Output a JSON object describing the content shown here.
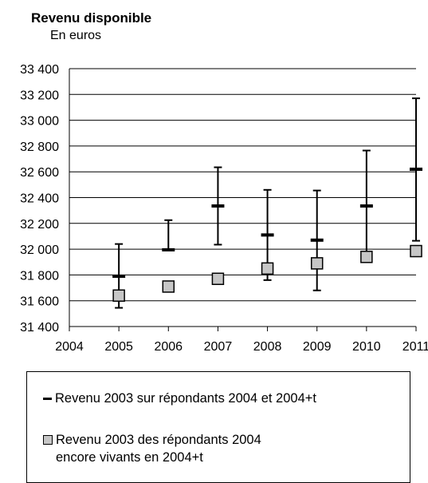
{
  "chart_data": {
    "type": "line",
    "title": "Revenu disponible",
    "subtitle": "En euros",
    "x_ticks": [
      "2004",
      "2005",
      "2006",
      "2007",
      "2008",
      "2009",
      "2010",
      "2011"
    ],
    "y_ticks": [
      "31 400",
      "31 600",
      "31 800",
      "32 000",
      "32 200",
      "32 400",
      "32 600",
      "32 800",
      "33 000",
      "33 200",
      "33 400"
    ],
    "ylim": [
      31400,
      33400
    ],
    "xlim": [
      2004,
      2011
    ],
    "grid": "horizontal",
    "legend_position": "bottom",
    "series": [
      {
        "name": "Revenu 2003 sur répondants 2004 et 2004+t",
        "marker": "dash",
        "x": [
          2005,
          2006,
          2007,
          2008,
          2009,
          2010,
          2011
        ],
        "values": [
          31790,
          31995,
          32335,
          32110,
          32070,
          32335,
          32620
        ],
        "error_low": [
          31545,
          31995,
          32035,
          31760,
          31680,
          31935,
          32065
        ],
        "error_high": [
          32040,
          32225,
          32635,
          32460,
          32455,
          32765,
          33170
        ]
      },
      {
        "name": "Revenu 2003 des répondants 2004\nencore vivants en 2004+t",
        "marker": "square",
        "x": [
          2005,
          2006,
          2007,
          2008,
          2009,
          2010,
          2011
        ],
        "values": [
          31640,
          31710,
          31770,
          31850,
          31890,
          31940,
          31985
        ]
      }
    ]
  },
  "colors": {
    "marker_fill": "#c6c6c6",
    "line": "#000000"
  }
}
